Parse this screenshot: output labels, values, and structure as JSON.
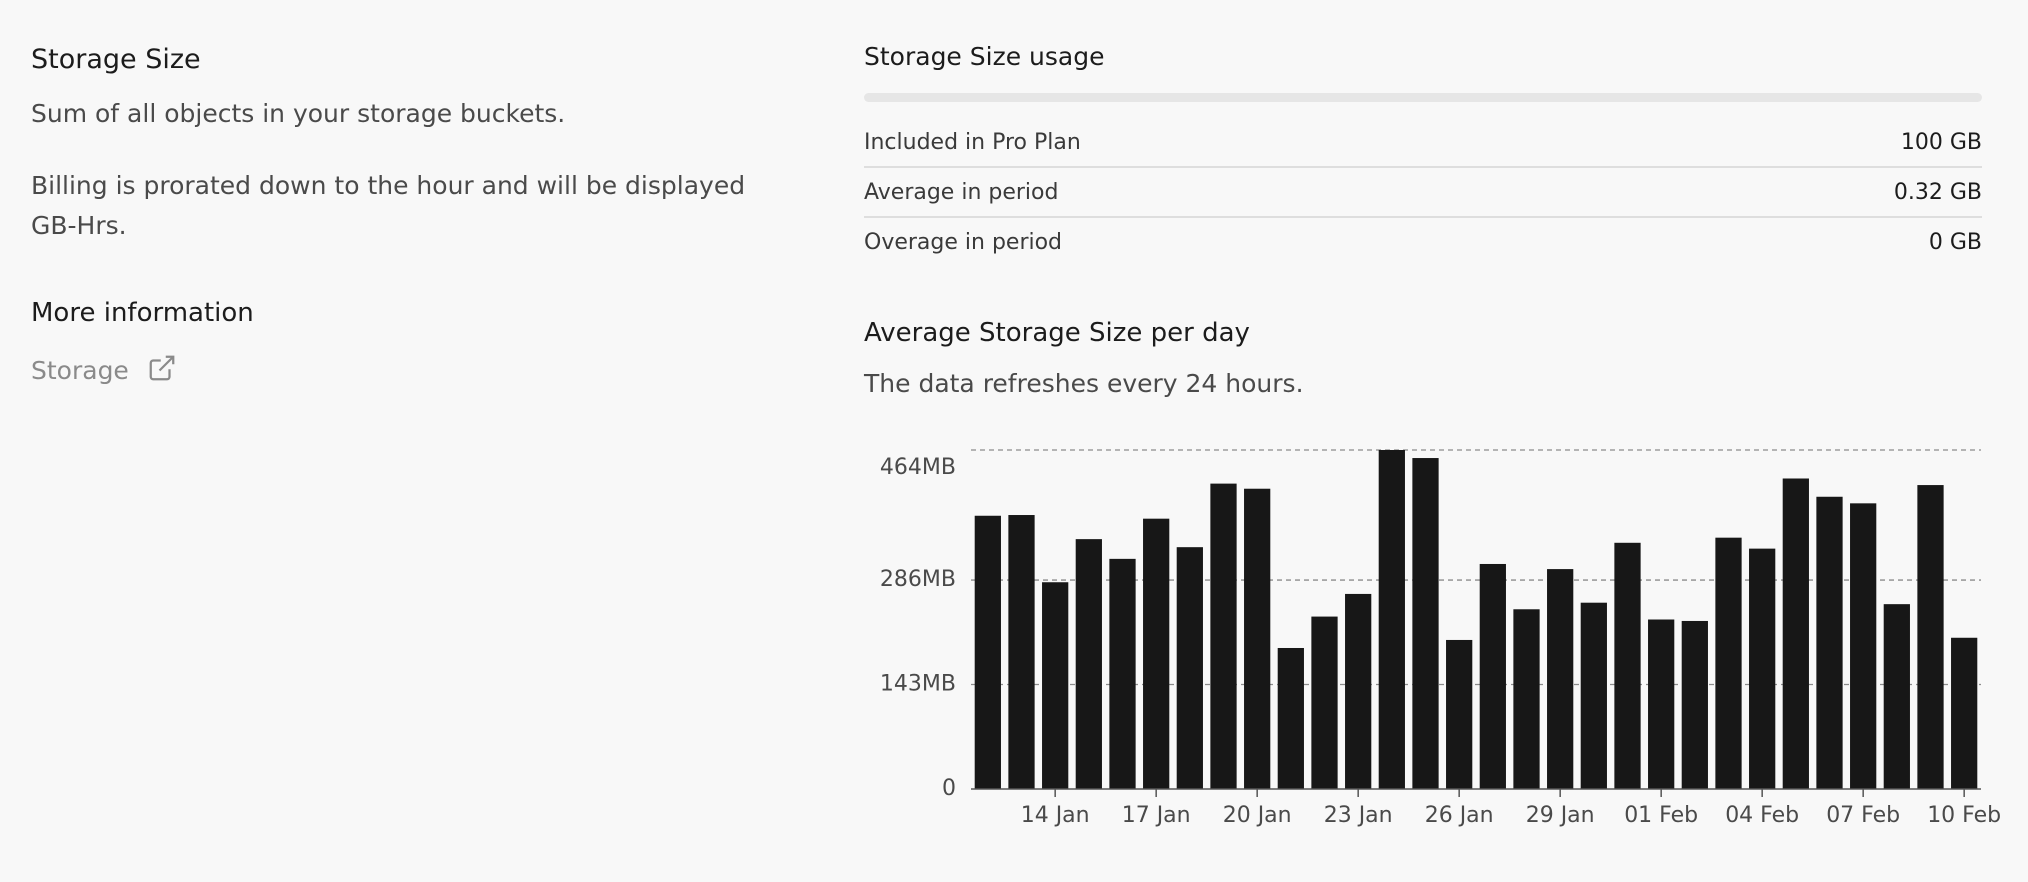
{
  "info": {
    "title": "Storage Size",
    "description": "Sum of all objects in your storage buckets.",
    "billing_note": "Billing is prorated down to the hour and will be displayed GB-Hrs.",
    "more_title": "More information",
    "link": "Storage"
  },
  "usage": {
    "title": "Storage Size usage",
    "rows": [
      [
        "Included in Pro Plan",
        "100 GB"
      ],
      [
        "Average in period",
        "0.32 GB"
      ],
      [
        "Overage in period",
        "0 GB"
      ]
    ]
  },
  "chart_data": {
    "type": "bar",
    "title": "Average Storage Size per day",
    "subtitle": "The data refreshes every 24 hours.",
    "categories": [
      null,
      null,
      "14 Jan",
      null,
      null,
      "17 Jan",
      null,
      null,
      "20 Jan",
      null,
      null,
      "23 Jan",
      null,
      null,
      "26 Jan",
      null,
      null,
      "29 Jan",
      null,
      null,
      "01 Feb",
      null,
      null,
      "04 Feb",
      null,
      null,
      "07 Feb",
      null,
      null,
      "10 Feb"
    ],
    "values": [
      374,
      375,
      283,
      342,
      315,
      370,
      331,
      418,
      411,
      193,
      236,
      267,
      464,
      453,
      204,
      308,
      246,
      301,
      255,
      337,
      232,
      230,
      344,
      329,
      425,
      400,
      391,
      253,
      416,
      207
    ],
    "color": "#171717",
    "ylim": [
      0,
      464
    ],
    "yticks": [
      0,
      {
        "value": 143,
        "label": "143MB"
      },
      {
        "value": 286,
        "label": "286MB"
      },
      {
        "value": 464,
        "label": "464MB"
      }
    ],
    "grid": true
  }
}
